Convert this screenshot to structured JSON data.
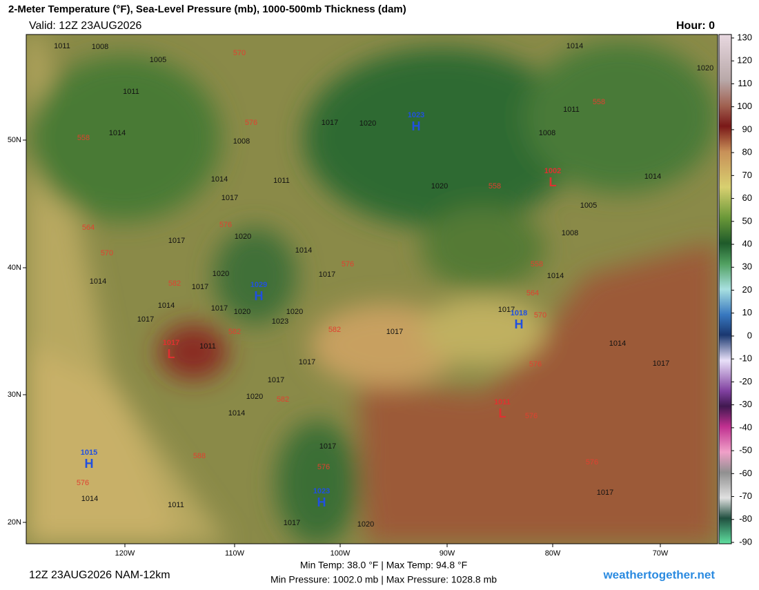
{
  "header": {
    "title": "2-Meter Temperature (°F), Sea-Level Pressure (mb), 1000-500mb Thickness (dam)",
    "valid": "Valid: 12Z 23AUG2026",
    "hour": "Hour: 0"
  },
  "colorbar": {
    "ticks": [
      130,
      120,
      110,
      100,
      90,
      80,
      70,
      60,
      50,
      40,
      30,
      20,
      10,
      0,
      -10,
      -20,
      -30,
      -40,
      -50,
      -60,
      -70,
      -80,
      -90
    ]
  },
  "latitude_labels": [
    "50N",
    "40N",
    "30N",
    "20N"
  ],
  "longitude_labels": [
    "120W",
    "110W",
    "100W",
    "90W",
    "80W",
    "70W"
  ],
  "pressure_centers": [
    {
      "letter": "H",
      "value": "1023"
    },
    {
      "letter": "H",
      "value": "1029"
    },
    {
      "letter": "H",
      "value": "1018"
    },
    {
      "letter": "H",
      "value": "1015"
    },
    {
      "letter": "H",
      "value": "1023"
    },
    {
      "letter": "L",
      "value": "1017"
    },
    {
      "letter": "L",
      "value": "1002"
    },
    {
      "letter": "L",
      "value": "1011"
    }
  ],
  "isobar_labels": [
    "1011",
    "1008",
    "1005",
    "1011",
    "1014",
    "1008",
    "1014",
    "1011",
    "1017",
    "1020",
    "1017",
    "1014",
    "1017",
    "1014",
    "1020",
    "1017",
    "1014",
    "1017",
    "1017",
    "1020",
    "1023",
    "1020",
    "1011",
    "1017",
    "1017",
    "1020",
    "1014",
    "1017",
    "1017",
    "1017",
    "1014",
    "1008",
    "1005",
    "1020",
    "1017",
    "1020",
    "1011",
    "1008",
    "1014",
    "1020",
    "1014",
    "1014",
    "1017",
    "1014",
    "1011",
    "1017",
    "1020",
    "1017"
  ],
  "thickness_labels": [
    "570",
    "576",
    "558",
    "564",
    "570",
    "576",
    "582",
    "582",
    "576",
    "582",
    "582",
    "558",
    "558",
    "558",
    "564",
    "570",
    "576",
    "576",
    "576",
    "576",
    "576",
    "588"
  ],
  "footer": {
    "run": "12Z 23AUG2026 NAM-12km",
    "temps": "Min Temp:  38.0 °F | Max Temp:  94.8 °F",
    "pressures": "Min Pressure: 1002.0 mb | Max Pressure: 1028.8 mb",
    "site": "weathertogether.net"
  }
}
